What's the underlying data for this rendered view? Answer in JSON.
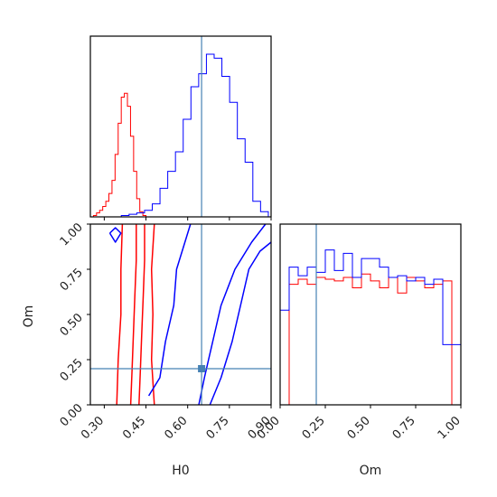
{
  "chart_data": {
    "type": "corner",
    "parameters": [
      "H0",
      "Om"
    ],
    "xlabel_h0": "H0",
    "xlabel_om": "Om",
    "ylabel_om": "Om",
    "truth": {
      "H0": 0.65,
      "Om": 0.2
    },
    "truth_color": "#4682b4",
    "series": [
      {
        "color": "#ff0000"
      },
      {
        "color": "#0000ff"
      }
    ],
    "panels": {
      "h0_hist": {
        "xlim": [
          0.25,
          0.9
        ],
        "red_counts": [
          0,
          1,
          3,
          5,
          8,
          12,
          18,
          28,
          48,
          72,
          92,
          95,
          85,
          62,
          35,
          14,
          4,
          1
        ],
        "blue_counts": [
          0,
          0,
          0,
          0,
          1,
          2,
          3,
          5,
          10,
          22,
          35,
          50,
          75,
          100,
          110,
          125,
          122,
          108,
          88,
          60,
          42,
          12,
          4
        ],
        "red_range": [
          0.25,
          0.45
        ],
        "blue_range": [
          0.25,
          0.89
        ]
      },
      "om_hist": {
        "xlim": [
          0.0,
          1.0
        ],
        "red_counts": [
          0,
          70,
          73,
          70,
          74,
          73,
          72,
          74,
          68,
          76,
          72,
          68,
          74,
          65,
          74,
          72,
          68,
          70,
          72,
          0
        ],
        "blue_counts": [
          55,
          80,
          75,
          80,
          77,
          90,
          78,
          88,
          74,
          85,
          85,
          80,
          74,
          75,
          72,
          74,
          70,
          73,
          35,
          35
        ]
      },
      "scatter": {
        "xlim": [
          0.25,
          0.9
        ],
        "ylim": [
          0.0,
          1.0
        ],
        "red_contours": [
          [
            [
              0.395,
              0.0
            ],
            [
              0.4,
              0.2
            ],
            [
              0.405,
              0.4
            ],
            [
              0.41,
              0.6
            ],
            [
              0.415,
              0.8
            ],
            [
              0.415,
              1.0
            ]
          ],
          [
            [
              0.425,
              0.0
            ],
            [
              0.43,
              0.2
            ],
            [
              0.435,
              0.4
            ],
            [
              0.44,
              0.6
            ],
            [
              0.445,
              0.8
            ],
            [
              0.445,
              1.0
            ]
          ],
          [
            [
              0.345,
              0.0
            ],
            [
              0.35,
              0.25
            ],
            [
              0.36,
              0.5
            ],
            [
              0.36,
              0.75
            ],
            [
              0.365,
              1.0
            ]
          ],
          [
            [
              0.48,
              0.0
            ],
            [
              0.47,
              0.25
            ],
            [
              0.475,
              0.5
            ],
            [
              0.47,
              0.75
            ],
            [
              0.48,
              1.0
            ]
          ]
        ],
        "blue_contours": [
          [
            [
              0.64,
              0.0
            ],
            [
              0.66,
              0.15
            ],
            [
              0.69,
              0.35
            ],
            [
              0.72,
              0.55
            ],
            [
              0.77,
              0.75
            ],
            [
              0.83,
              0.9
            ],
            [
              0.88,
              1.0
            ]
          ],
          [
            [
              0.68,
              0.0
            ],
            [
              0.72,
              0.15
            ],
            [
              0.76,
              0.35
            ],
            [
              0.79,
              0.55
            ],
            [
              0.82,
              0.75
            ],
            [
              0.86,
              0.85
            ],
            [
              0.9,
              0.9
            ]
          ],
          [
            [
              0.46,
              0.05
            ],
            [
              0.5,
              0.15
            ],
            [
              0.52,
              0.35
            ],
            [
              0.55,
              0.55
            ],
            [
              0.56,
              0.75
            ],
            [
              0.61,
              1.0
            ]
          ],
          [
            [
              0.32,
              0.95
            ],
            [
              0.34,
              0.9
            ],
            [
              0.36,
              0.95
            ],
            [
              0.34,
              0.98
            ],
            [
              0.32,
              0.95
            ]
          ]
        ]
      }
    }
  }
}
